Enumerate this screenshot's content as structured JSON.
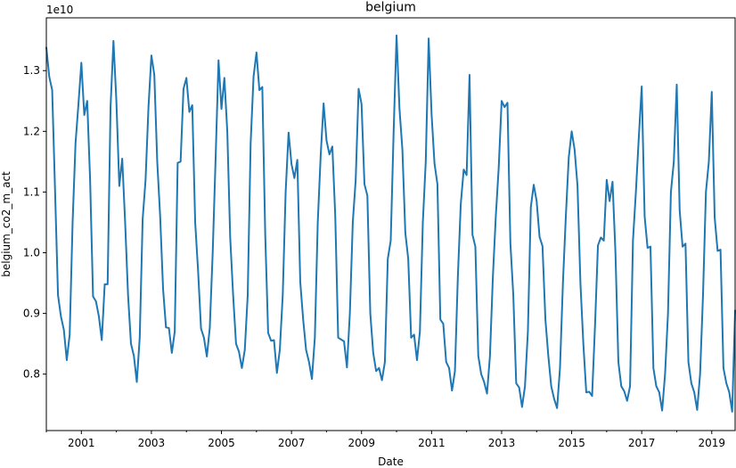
{
  "chart_data": {
    "type": "line",
    "title": "belgium",
    "xlabel": "Date",
    "ylabel": "belgium_co2_m_act",
    "y_offset_label": "1e10",
    "y_scale": 10000000000,
    "line_color": "#1f77b4",
    "grid": false,
    "legend": "none",
    "x_ticks": [
      "2001",
      "2003",
      "2005",
      "2007",
      "2009",
      "2011",
      "2013",
      "2015",
      "2017",
      "2019"
    ],
    "y_ticks": [
      "0.8",
      "0.9",
      "1.0",
      "1.1",
      "1.2",
      "1.3"
    ],
    "xlim": [
      "2000-01",
      "2019-09"
    ],
    "ylim": [
      0.707,
      1.387
    ],
    "series": [
      {
        "values": [
          [
            "2000-01",
            1.338
          ],
          [
            "2000-02",
            1.29
          ],
          [
            "2000-03",
            1.268
          ],
          [
            "2000-04",
            1.1
          ],
          [
            "2000-05",
            0.93
          ],
          [
            "2000-06",
            0.895
          ],
          [
            "2000-07",
            0.873
          ],
          [
            "2000-08",
            0.823
          ],
          [
            "2000-09",
            0.865
          ],
          [
            "2000-10",
            1.05
          ],
          [
            "2000-11",
            1.18
          ],
          [
            "2000-12",
            1.245
          ],
          [
            "2001-01",
            1.313
          ],
          [
            "2001-02",
            1.227
          ],
          [
            "2001-03",
            1.25
          ],
          [
            "2001-04",
            1.12
          ],
          [
            "2001-05",
            0.928
          ],
          [
            "2001-06",
            0.92
          ],
          [
            "2001-07",
            0.895
          ],
          [
            "2001-08",
            0.856
          ],
          [
            "2001-09",
            0.948
          ],
          [
            "2001-10",
            0.948
          ],
          [
            "2001-11",
            1.24
          ],
          [
            "2001-12",
            1.349
          ],
          [
            "2002-01",
            1.25
          ],
          [
            "2002-02",
            1.11
          ],
          [
            "2002-03",
            1.155
          ],
          [
            "2002-04",
            1.05
          ],
          [
            "2002-05",
            0.93
          ],
          [
            "2002-06",
            0.85
          ],
          [
            "2002-07",
            0.83
          ],
          [
            "2002-08",
            0.787
          ],
          [
            "2002-09",
            0.86
          ],
          [
            "2002-10",
            1.055
          ],
          [
            "2002-11",
            1.12
          ],
          [
            "2002-12",
            1.24
          ],
          [
            "2003-01",
            1.325
          ],
          [
            "2003-02",
            1.293
          ],
          [
            "2003-03",
            1.15
          ],
          [
            "2003-04",
            1.06
          ],
          [
            "2003-05",
            0.94
          ],
          [
            "2003-06",
            0.877
          ],
          [
            "2003-07",
            0.876
          ],
          [
            "2003-08",
            0.835
          ],
          [
            "2003-09",
            0.87
          ],
          [
            "2003-10",
            1.148
          ],
          [
            "2003-11",
            1.15
          ],
          [
            "2003-12",
            1.27
          ],
          [
            "2004-01",
            1.288
          ],
          [
            "2004-02",
            1.232
          ],
          [
            "2004-03",
            1.243
          ],
          [
            "2004-04",
            1.05
          ],
          [
            "2004-05",
            0.97
          ],
          [
            "2004-06",
            0.875
          ],
          [
            "2004-07",
            0.86
          ],
          [
            "2004-08",
            0.829
          ],
          [
            "2004-09",
            0.876
          ],
          [
            "2004-10",
            1.0
          ],
          [
            "2004-11",
            1.155
          ],
          [
            "2004-12",
            1.317
          ],
          [
            "2005-01",
            1.237
          ],
          [
            "2005-02",
            1.288
          ],
          [
            "2005-03",
            1.2
          ],
          [
            "2005-04",
            1.025
          ],
          [
            "2005-05",
            0.93
          ],
          [
            "2005-06",
            0.85
          ],
          [
            "2005-07",
            0.837
          ],
          [
            "2005-08",
            0.81
          ],
          [
            "2005-09",
            0.84
          ],
          [
            "2005-10",
            0.93
          ],
          [
            "2005-11",
            1.18
          ],
          [
            "2005-12",
            1.29
          ],
          [
            "2006-01",
            1.33
          ],
          [
            "2006-02",
            1.268
          ],
          [
            "2006-03",
            1.273
          ],
          [
            "2006-04",
            1.03
          ],
          [
            "2006-05",
            0.868
          ],
          [
            "2006-06",
            0.855
          ],
          [
            "2006-07",
            0.856
          ],
          [
            "2006-08",
            0.802
          ],
          [
            "2006-09",
            0.84
          ],
          [
            "2006-10",
            0.93
          ],
          [
            "2006-11",
            1.1
          ],
          [
            "2006-12",
            1.198
          ],
          [
            "2007-01",
            1.146
          ],
          [
            "2007-02",
            1.123
          ],
          [
            "2007-03",
            1.153
          ],
          [
            "2007-04",
            0.952
          ],
          [
            "2007-05",
            0.89
          ],
          [
            "2007-06",
            0.84
          ],
          [
            "2007-07",
            0.82
          ],
          [
            "2007-08",
            0.792
          ],
          [
            "2007-09",
            0.86
          ],
          [
            "2007-10",
            1.05
          ],
          [
            "2007-11",
            1.16
          ],
          [
            "2007-12",
            1.246
          ],
          [
            "2008-01",
            1.185
          ],
          [
            "2008-02",
            1.162
          ],
          [
            "2008-03",
            1.175
          ],
          [
            "2008-04",
            1.06
          ],
          [
            "2008-05",
            0.86
          ],
          [
            "2008-06",
            0.857
          ],
          [
            "2008-07",
            0.854
          ],
          [
            "2008-08",
            0.811
          ],
          [
            "2008-09",
            0.9
          ],
          [
            "2008-10",
            1.05
          ],
          [
            "2008-11",
            1.12
          ],
          [
            "2008-12",
            1.27
          ],
          [
            "2009-01",
            1.245
          ],
          [
            "2009-02",
            1.113
          ],
          [
            "2009-03",
            1.094
          ],
          [
            "2009-04",
            0.9
          ],
          [
            "2009-05",
            0.835
          ],
          [
            "2009-06",
            0.805
          ],
          [
            "2009-07",
            0.81
          ],
          [
            "2009-08",
            0.79
          ],
          [
            "2009-09",
            0.82
          ],
          [
            "2009-10",
            0.99
          ],
          [
            "2009-11",
            1.02
          ],
          [
            "2009-12",
            1.2
          ],
          [
            "2010-01",
            1.358
          ],
          [
            "2010-02",
            1.237
          ],
          [
            "2010-03",
            1.17
          ],
          [
            "2010-04",
            1.033
          ],
          [
            "2010-05",
            0.99
          ],
          [
            "2010-06",
            0.86
          ],
          [
            "2010-07",
            0.865
          ],
          [
            "2010-08",
            0.823
          ],
          [
            "2010-09",
            0.87
          ],
          [
            "2010-10",
            1.05
          ],
          [
            "2010-11",
            1.15
          ],
          [
            "2010-12",
            1.353
          ],
          [
            "2011-01",
            1.228
          ],
          [
            "2011-02",
            1.147
          ],
          [
            "2011-03",
            1.113
          ],
          [
            "2011-04",
            0.89
          ],
          [
            "2011-05",
            0.883
          ],
          [
            "2011-06",
            0.82
          ],
          [
            "2011-07",
            0.81
          ],
          [
            "2011-08",
            0.773
          ],
          [
            "2011-09",
            0.805
          ],
          [
            "2011-10",
            0.96
          ],
          [
            "2011-11",
            1.08
          ],
          [
            "2011-12",
            1.137
          ],
          [
            "2012-01",
            1.128
          ],
          [
            "2012-02",
            1.293
          ],
          [
            "2012-03",
            1.03
          ],
          [
            "2012-04",
            1.01
          ],
          [
            "2012-05",
            0.83
          ],
          [
            "2012-06",
            0.8
          ],
          [
            "2012-07",
            0.787
          ],
          [
            "2012-08",
            0.768
          ],
          [
            "2012-09",
            0.83
          ],
          [
            "2012-10",
            0.96
          ],
          [
            "2012-11",
            1.06
          ],
          [
            "2012-12",
            1.14
          ],
          [
            "2013-01",
            1.25
          ],
          [
            "2013-02",
            1.24
          ],
          [
            "2013-03",
            1.247
          ],
          [
            "2013-04",
            1.016
          ],
          [
            "2013-05",
            0.93
          ],
          [
            "2013-06",
            0.785
          ],
          [
            "2013-07",
            0.778
          ],
          [
            "2013-08",
            0.746
          ],
          [
            "2013-09",
            0.78
          ],
          [
            "2013-10",
            0.87
          ],
          [
            "2013-11",
            1.075
          ],
          [
            "2013-12",
            1.112
          ],
          [
            "2014-01",
            1.085
          ],
          [
            "2014-02",
            1.026
          ],
          [
            "2014-03",
            1.011
          ],
          [
            "2014-04",
            0.89
          ],
          [
            "2014-05",
            0.83
          ],
          [
            "2014-06",
            0.78
          ],
          [
            "2014-07",
            0.759
          ],
          [
            "2014-08",
            0.744
          ],
          [
            "2014-09",
            0.81
          ],
          [
            "2014-10",
            0.95
          ],
          [
            "2014-11",
            1.06
          ],
          [
            "2014-12",
            1.157
          ],
          [
            "2015-01",
            1.2
          ],
          [
            "2015-02",
            1.17
          ],
          [
            "2015-03",
            1.11
          ],
          [
            "2015-04",
            0.95
          ],
          [
            "2015-05",
            0.85
          ],
          [
            "2015-06",
            0.77
          ],
          [
            "2015-07",
            0.771
          ],
          [
            "2015-08",
            0.764
          ],
          [
            "2015-09",
            0.88
          ],
          [
            "2015-10",
            1.012
          ],
          [
            "2015-11",
            1.025
          ],
          [
            "2015-12",
            1.02
          ],
          [
            "2016-01",
            1.12
          ],
          [
            "2016-02",
            1.085
          ],
          [
            "2016-03",
            1.117
          ],
          [
            "2016-04",
            1.0
          ],
          [
            "2016-05",
            0.82
          ],
          [
            "2016-06",
            0.78
          ],
          [
            "2016-07",
            0.772
          ],
          [
            "2016-08",
            0.756
          ],
          [
            "2016-09",
            0.78
          ],
          [
            "2016-10",
            1.02
          ],
          [
            "2016-11",
            1.1
          ],
          [
            "2016-12",
            1.19
          ],
          [
            "2017-01",
            1.274
          ],
          [
            "2017-02",
            1.06
          ],
          [
            "2017-03",
            1.008
          ],
          [
            "2017-04",
            1.01
          ],
          [
            "2017-05",
            0.81
          ],
          [
            "2017-06",
            0.78
          ],
          [
            "2017-07",
            0.77
          ],
          [
            "2017-08",
            0.74
          ],
          [
            "2017-09",
            0.8
          ],
          [
            "2017-10",
            0.9
          ],
          [
            "2017-11",
            1.1
          ],
          [
            "2017-12",
            1.15
          ],
          [
            "2018-01",
            1.277
          ],
          [
            "2018-02",
            1.07
          ],
          [
            "2018-03",
            1.01
          ],
          [
            "2018-04",
            1.015
          ],
          [
            "2018-05",
            0.82
          ],
          [
            "2018-06",
            0.785
          ],
          [
            "2018-07",
            0.77
          ],
          [
            "2018-08",
            0.741
          ],
          [
            "2018-09",
            0.8
          ],
          [
            "2018-10",
            0.93
          ],
          [
            "2018-11",
            1.1
          ],
          [
            "2018-12",
            1.15
          ],
          [
            "2019-01",
            1.265
          ],
          [
            "2019-02",
            1.058
          ],
          [
            "2019-03",
            1.003
          ],
          [
            "2019-04",
            1.005
          ],
          [
            "2019-05",
            0.81
          ],
          [
            "2019-06",
            0.785
          ],
          [
            "2019-07",
            0.77
          ],
          [
            "2019-08",
            0.738
          ],
          [
            "2019-09",
            0.905
          ]
        ]
      }
    ]
  }
}
